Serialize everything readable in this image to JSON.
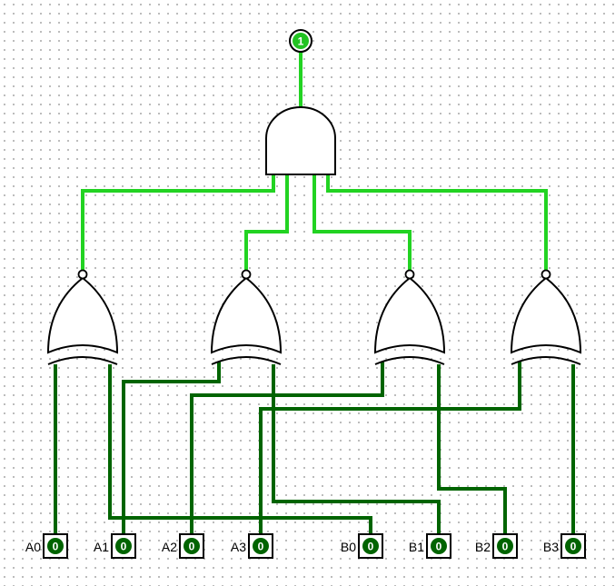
{
  "inputs": [
    {
      "label": "A0",
      "value": "0"
    },
    {
      "label": "A1",
      "value": "0"
    },
    {
      "label": "A2",
      "value": "0"
    },
    {
      "label": "A3",
      "value": "0"
    },
    {
      "label": "B0",
      "value": "0"
    },
    {
      "label": "B1",
      "value": "0"
    },
    {
      "label": "B2",
      "value": "0"
    },
    {
      "label": "B3",
      "value": "0"
    }
  ],
  "output": {
    "value": "1"
  },
  "gates": {
    "and": "AND",
    "xnor": [
      "XNOR",
      "XNOR",
      "XNOR",
      "XNOR"
    ]
  },
  "colors": {
    "wire_low": "#006400",
    "wire_high": "#22d322",
    "pin_fill": "#006400",
    "output_fill": "#22c322"
  }
}
